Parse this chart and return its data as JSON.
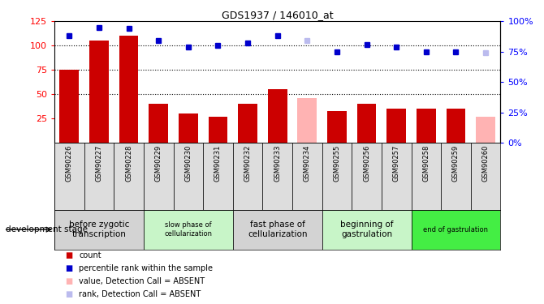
{
  "title": "GDS1937 / 146010_at",
  "samples": [
    "GSM90226",
    "GSM90227",
    "GSM90228",
    "GSM90229",
    "GSM90230",
    "GSM90231",
    "GSM90232",
    "GSM90233",
    "GSM90234",
    "GSM90255",
    "GSM90256",
    "GSM90257",
    "GSM90258",
    "GSM90259",
    "GSM90260"
  ],
  "bar_values": [
    75,
    105,
    110,
    40,
    30,
    27,
    40,
    55,
    46,
    33,
    40,
    35,
    35,
    35,
    27
  ],
  "bar_absent": [
    false,
    false,
    false,
    false,
    false,
    false,
    false,
    false,
    true,
    false,
    false,
    false,
    false,
    false,
    true
  ],
  "rank_values": [
    88,
    95,
    94,
    84,
    79,
    80,
    82,
    88,
    84,
    75,
    81,
    79,
    75,
    75,
    74
  ],
  "rank_absent": [
    false,
    false,
    false,
    false,
    false,
    false,
    false,
    false,
    true,
    false,
    false,
    false,
    false,
    false,
    true
  ],
  "bar_color_present": "#CC0000",
  "bar_color_absent": "#FFB3B3",
  "rank_color_present": "#0000CC",
  "rank_color_absent": "#BBBBEE",
  "ylim_left": [
    0,
    125
  ],
  "ylim_right": [
    0,
    100
  ],
  "yticks_left": [
    25,
    50,
    75,
    100,
    125
  ],
  "yticks_right": [
    0,
    25,
    50,
    75,
    100
  ],
  "ytick_labels_right": [
    "0%",
    "25%",
    "50%",
    "75%",
    "100%"
  ],
  "hlines": [
    50,
    75,
    100
  ],
  "stage_groups": [
    {
      "label": "before zygotic\ntranscription",
      "indices": [
        0,
        1,
        2
      ],
      "color": "#D3D3D3"
    },
    {
      "label": "slow phase of\ncellularization",
      "indices": [
        3,
        4,
        5
      ],
      "color": "#C8F5C8"
    },
    {
      "label": "fast phase of\ncellularization",
      "indices": [
        6,
        7,
        8
      ],
      "color": "#D3D3D3"
    },
    {
      "label": "beginning of\ngastrulation",
      "indices": [
        9,
        10,
        11
      ],
      "color": "#C8F5C8"
    },
    {
      "label": "end of gastrulation",
      "indices": [
        12,
        13,
        14
      ],
      "color": "#44EE44"
    }
  ],
  "legend_items": [
    {
      "label": "count",
      "color": "#CC0000"
    },
    {
      "label": "percentile rank within the sample",
      "color": "#0000CC"
    },
    {
      "label": "value, Detection Call = ABSENT",
      "color": "#FFB3B3"
    },
    {
      "label": "rank, Detection Call = ABSENT",
      "color": "#BBBBEE"
    }
  ],
  "dev_stage_label": "development stage"
}
